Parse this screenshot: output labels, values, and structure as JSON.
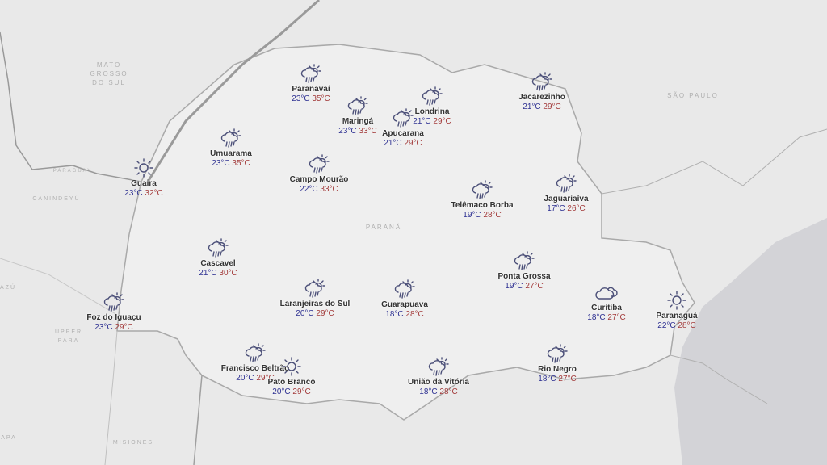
{
  "map": {
    "state_label": "PARANÁ",
    "regions": [
      "MATO GROSSO DO SUL",
      "SÃO PAULO",
      "PARAGUAY",
      "CANINDEYÚ",
      "UPPER PARA",
      "MISIONES",
      "AZÚ",
      "APA"
    ],
    "colors": {
      "icon": "#4b4f78",
      "min_temp": "#2e3192",
      "max_temp": "#a33b3b",
      "land": "#efefef",
      "sea": "#d3d3d7"
    }
  },
  "cities": [
    {
      "name": "Paranavaí",
      "min": "23°C",
      "max": "35°C",
      "icon": "rain-sun-icon"
    },
    {
      "name": "Maringá",
      "min": "23°C",
      "max": "33°C",
      "icon": "rain-sun-icon"
    },
    {
      "name": "Londrina",
      "min": "21°C",
      "max": "29°C",
      "icon": "rain-sun-icon"
    },
    {
      "name": "Apucarana",
      "min": "21°C",
      "max": "29°C",
      "icon": "rain-sun-icon"
    },
    {
      "name": "Jacarezinho",
      "min": "21°C",
      "max": "29°C",
      "icon": "rain-sun-icon"
    },
    {
      "name": "Umuarama",
      "min": "23°C",
      "max": "35°C",
      "icon": "rain-sun-icon"
    },
    {
      "name": "Guaira",
      "min": "23°C",
      "max": "32°C",
      "icon": "sun-icon"
    },
    {
      "name": "Campo Mourão",
      "min": "22°C",
      "max": "33°C",
      "icon": "rain-sun-icon"
    },
    {
      "name": "Telêmaco Borba",
      "min": "19°C",
      "max": "28°C",
      "icon": "rain-sun-icon"
    },
    {
      "name": "Jaguariaíva",
      "min": "17°C",
      "max": "26°C",
      "icon": "rain-sun-icon"
    },
    {
      "name": "Cascavel",
      "min": "21°C",
      "max": "30°C",
      "icon": "rain-sun-icon"
    },
    {
      "name": "Ponta Grossa",
      "min": "19°C",
      "max": "27°C",
      "icon": "rain-sun-icon"
    },
    {
      "name": "Foz do Iguaçu",
      "min": "23°C",
      "max": "29°C",
      "icon": "rain-sun-icon"
    },
    {
      "name": "Laranjeiras do Sul",
      "min": "20°C",
      "max": "29°C",
      "icon": "rain-sun-icon"
    },
    {
      "name": "Guarapuava",
      "min": "18°C",
      "max": "28°C",
      "icon": "rain-sun-icon"
    },
    {
      "name": "Curitiba",
      "min": "18°C",
      "max": "27°C",
      "icon": "cloud-icon"
    },
    {
      "name": "Paranaguá",
      "min": "22°C",
      "max": "28°C",
      "icon": "sun-icon"
    },
    {
      "name": "Francisco Beltrão",
      "min": "20°C",
      "max": "29°C",
      "icon": "rain-sun-icon"
    },
    {
      "name": "Pato Branco",
      "min": "20°C",
      "max": "29°C",
      "icon": "sun-icon"
    },
    {
      "name": "União da Vitória",
      "min": "18°C",
      "max": "28°C",
      "icon": "rain-sun-icon"
    },
    {
      "name": "Rio Negro",
      "min": "18°C",
      "max": "27°C",
      "icon": "rain-sun-icon"
    }
  ]
}
